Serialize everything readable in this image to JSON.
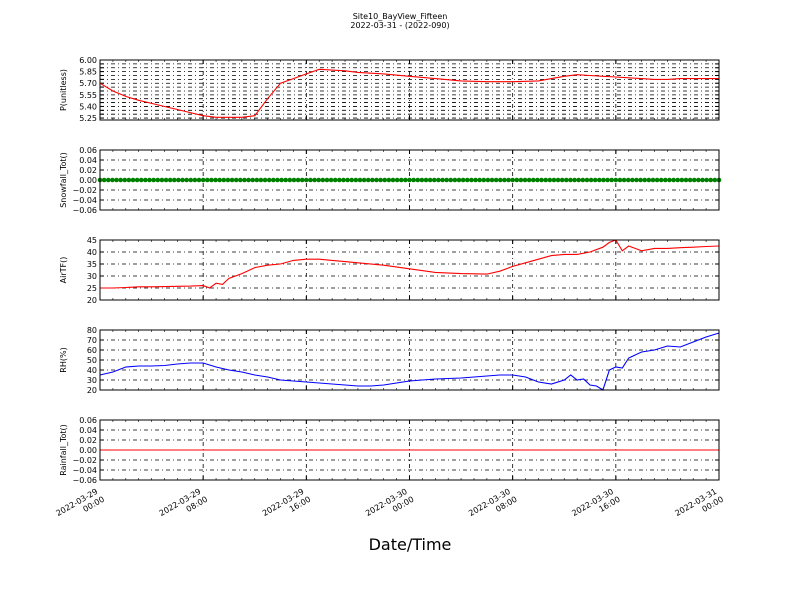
{
  "chart_data": {
    "type": "line",
    "title": "Site10_BayView_Fifteen",
    "subtitle": "2022-03-31 - (2022-090)",
    "xlabel": "Date/Time",
    "x_ticks": [
      {
        "value": 0,
        "date": "2022-03-29",
        "time": "00:00"
      },
      {
        "value": 8,
        "date": "2022-03-29",
        "time": "08:00"
      },
      {
        "value": 16,
        "date": "2022-03-29",
        "time": "16:00"
      },
      {
        "value": 24,
        "date": "2022-03-30",
        "time": "00:00"
      },
      {
        "value": 32,
        "date": "2022-03-30",
        "time": "08:00"
      },
      {
        "value": 40,
        "date": "2022-03-30",
        "time": "16:00"
      },
      {
        "value": 48,
        "date": "2022-03-31",
        "time": "00:00"
      }
    ],
    "xlim": [
      0,
      48
    ],
    "grid": true,
    "panels": [
      {
        "ylabel": "P(unitless)",
        "ylim": [
          5.225,
          6.0
        ],
        "yticks": [
          5.25,
          5.3,
          5.35,
          5.4,
          5.45,
          5.5,
          5.55,
          5.6,
          5.65,
          5.7,
          5.75,
          5.8,
          5.85,
          5.9,
          5.95,
          6.0
        ],
        "ytick_labels": [
          "5.25",
          "",
          "",
          "5.40",
          "",
          "",
          "5.55",
          "",
          "",
          "5.70",
          "",
          "",
          "5.85",
          "",
          "",
          "6.00"
        ],
        "color": "#ff0000",
        "marker": false,
        "x": [
          0,
          1,
          2,
          3,
          4,
          5,
          6,
          7,
          8,
          9,
          10,
          11,
          12,
          13,
          14,
          15,
          16,
          17,
          18,
          19,
          20,
          22,
          24,
          26,
          28,
          30,
          32,
          34,
          35,
          36,
          37,
          38,
          39,
          40,
          41,
          42,
          43,
          44,
          45,
          46,
          47,
          48
        ],
        "y": [
          5.7,
          5.6,
          5.53,
          5.48,
          5.44,
          5.4,
          5.36,
          5.32,
          5.28,
          5.26,
          5.26,
          5.26,
          5.28,
          5.5,
          5.7,
          5.76,
          5.82,
          5.88,
          5.87,
          5.86,
          5.84,
          5.82,
          5.79,
          5.76,
          5.73,
          5.72,
          5.72,
          5.73,
          5.76,
          5.79,
          5.81,
          5.8,
          5.79,
          5.78,
          5.77,
          5.76,
          5.75,
          5.75,
          5.76,
          5.76,
          5.76,
          5.76
        ]
      },
      {
        "ylabel": "Snowfall_Tot()",
        "ylim": [
          -0.06,
          0.06
        ],
        "yticks": [
          -0.06,
          -0.04,
          -0.02,
          0.0,
          0.02,
          0.04,
          0.06
        ],
        "ytick_labels": [
          "−0.06",
          "−0.04",
          "−0.02",
          "0.00",
          "0.02",
          "0.04",
          "0.06"
        ],
        "color": "#008000",
        "marker": true,
        "x": [
          0,
          48
        ],
        "y": [
          0.0,
          0.0
        ]
      },
      {
        "ylabel": "AirTF()",
        "ylim": [
          20,
          45
        ],
        "yticks": [
          20,
          25,
          30,
          35,
          40,
          45
        ],
        "ytick_labels": [
          "20",
          "25",
          "30",
          "35",
          "40",
          "45"
        ],
        "color": "#ff0000",
        "marker": false,
        "x": [
          0,
          1,
          2,
          3,
          4,
          5,
          6,
          7,
          8,
          8.5,
          9,
          9.5,
          10,
          11,
          12,
          13,
          14,
          15,
          16,
          17,
          18,
          19,
          20,
          22,
          24,
          26,
          28,
          30,
          31,
          32,
          33,
          34,
          35,
          36,
          37,
          38,
          39,
          39.5,
          40,
          40.5,
          41,
          42,
          43,
          44,
          45,
          46,
          47,
          48
        ],
        "y": [
          25.0,
          25.0,
          25.2,
          25.5,
          25.5,
          25.6,
          25.7,
          25.8,
          26.0,
          25.0,
          27.0,
          26.5,
          29.0,
          31.0,
          33.5,
          34.5,
          35.0,
          36.5,
          37.0,
          37.0,
          36.5,
          36.0,
          35.5,
          34.5,
          33.0,
          31.5,
          31.0,
          30.8,
          32.0,
          34.0,
          35.5,
          37.0,
          38.5,
          39.0,
          39.0,
          40.0,
          42.0,
          44.0,
          45.0,
          40.5,
          42.5,
          40.5,
          41.5,
          41.5,
          41.8,
          42.0,
          42.3,
          42.5
        ]
      },
      {
        "ylabel": "RH(%)",
        "ylim": [
          20,
          80
        ],
        "yticks": [
          20,
          30,
          40,
          50,
          60,
          70,
          80
        ],
        "ytick_labels": [
          "20",
          "30",
          "40",
          "50",
          "60",
          "70",
          "80"
        ],
        "color": "#0000ff",
        "marker": false,
        "x": [
          0,
          1,
          2,
          3,
          4,
          5,
          6,
          7,
          8,
          9,
          10,
          11,
          12,
          13,
          14,
          15,
          16,
          17,
          18,
          19,
          20,
          21,
          22,
          24,
          26,
          28,
          30,
          31,
          32,
          33,
          34,
          35,
          36,
          36.5,
          37,
          37.5,
          38,
          38.5,
          39,
          39.5,
          40,
          40.5,
          41,
          42,
          43,
          44,
          45,
          46,
          47,
          48
        ],
        "y": [
          35,
          38,
          43,
          44,
          44,
          44.5,
          46,
          47,
          47,
          43,
          40,
          38,
          35,
          33,
          30,
          29,
          28,
          27,
          26,
          25,
          24,
          24,
          25,
          29,
          31,
          32,
          34,
          35,
          35,
          33,
          28,
          26,
          30,
          35,
          30,
          31,
          25,
          24,
          20,
          40,
          43,
          42,
          52,
          58,
          60,
          64,
          63,
          68,
          73,
          77
        ]
      },
      {
        "ylabel": "Rainfall_Tot()",
        "ylim": [
          -0.06,
          0.06
        ],
        "yticks": [
          -0.06,
          -0.04,
          -0.02,
          0.0,
          0.02,
          0.04,
          0.06
        ],
        "ytick_labels": [
          "−0.06",
          "−0.04",
          "−0.02",
          "0.00",
          "0.02",
          "0.04",
          "0.06"
        ],
        "color": "#ff0000",
        "marker": false,
        "x": [
          0,
          48
        ],
        "y": [
          0.0,
          0.0
        ]
      }
    ]
  }
}
